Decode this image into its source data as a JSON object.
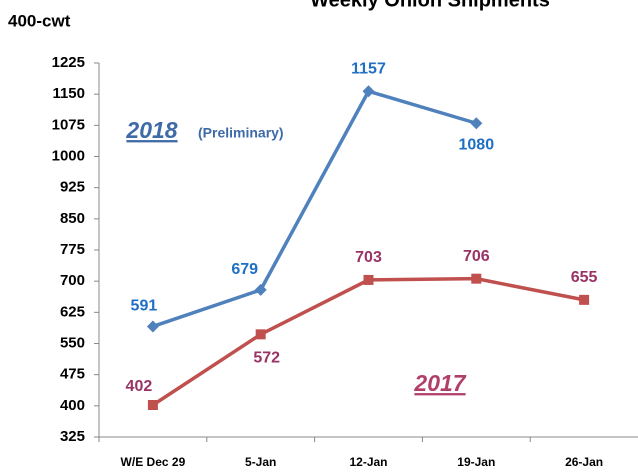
{
  "chart_data": {
    "type": "line",
    "title": "Weekly Onion Shipments",
    "y_label": "400-cwt",
    "categories": [
      "W/E Dec 29",
      "5-Jan",
      "12-Jan",
      "19-Jan",
      "26-Jan"
    ],
    "series": [
      {
        "name": "2018",
        "color": "#4f81bd",
        "label_color": "#1f6fc4",
        "marker": "diamond",
        "values": [
          591,
          679,
          1157,
          1080,
          null
        ]
      },
      {
        "name": "2017",
        "color": "#c0504d",
        "label_color": "#993366",
        "marker": "square",
        "values": [
          402,
          572,
          703,
          706,
          655
        ]
      }
    ],
    "annotations": [
      {
        "text": "2018",
        "color": "#3e6aa8"
      },
      {
        "text": "(Preliminary)",
        "color": "#3e6aa8"
      },
      {
        "text": "2017",
        "color": "#b0406a"
      }
    ],
    "ylim": [
      325,
      1225
    ],
    "yticks": [
      325,
      400,
      475,
      550,
      625,
      700,
      775,
      850,
      925,
      1000,
      1075,
      1150,
      1225
    ],
    "grid": false
  }
}
